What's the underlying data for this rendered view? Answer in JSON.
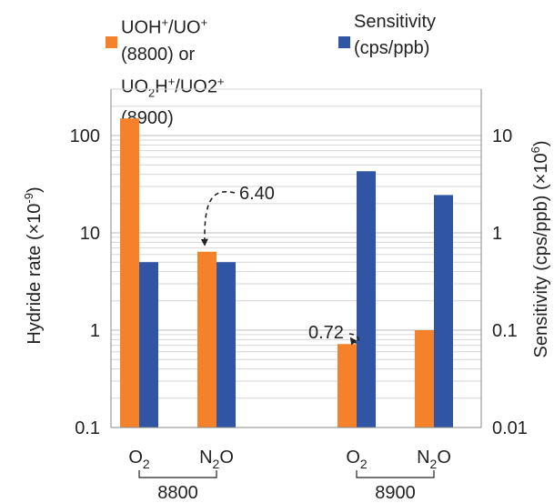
{
  "chart_data": {
    "type": "bar",
    "y_scale": "log",
    "grid": true,
    "legend_position": "top",
    "legend": [
      {
        "key": "hydride",
        "color": "#F5822A",
        "line1_parts": [
          {
            "t": "UOH",
            "s": ""
          },
          {
            "t": "+",
            "s": "sup"
          },
          {
            "t": "/UO",
            "s": ""
          },
          {
            "t": "+",
            "s": "sup"
          },
          {
            "t": " (8800) or",
            "s": ""
          }
        ],
        "line2_parts": [
          {
            "t": "UO",
            "s": ""
          },
          {
            "t": "2",
            "s": "sub"
          },
          {
            "t": "H",
            "s": ""
          },
          {
            "t": "+",
            "s": "sup"
          },
          {
            "t": "/UO2",
            "s": ""
          },
          {
            "t": "+",
            "s": "sup"
          },
          {
            "t": " (8900)",
            "s": ""
          }
        ]
      },
      {
        "key": "sensitivity",
        "color": "#2F55A4",
        "line1_parts": [
          {
            "t": "Sensitivity",
            "s": ""
          }
        ],
        "line2_parts": [
          {
            "t": "(cps/ppb)",
            "s": ""
          }
        ]
      }
    ],
    "y_left": {
      "label": "Hydride rate (×10",
      "label_exp": "-9",
      "label_end": ")",
      "range": [
        0.1,
        300
      ],
      "ticks": [
        0.1,
        1,
        10,
        100
      ],
      "tick_labels": [
        "0.1",
        "1",
        "10",
        "100"
      ]
    },
    "y_right": {
      "label": "Sensitivity (cps/ppb) (×10",
      "label_exp": "6",
      "label_end": ")",
      "range": [
        0.01,
        30
      ],
      "ticks": [
        0.01,
        0.1,
        1,
        10
      ],
      "tick_labels": [
        "0.01",
        "0.1",
        "1",
        "10"
      ]
    },
    "categories": [
      {
        "main": "O",
        "sub": "2",
        "rest": ""
      },
      {
        "main": "N",
        "sub": "2",
        "rest": "O"
      },
      {
        "main": "O",
        "sub": "2",
        "rest": ""
      },
      {
        "main": "N",
        "sub": "2",
        "rest": "O"
      }
    ],
    "groups": [
      {
        "label": "8800",
        "members": [
          0,
          1
        ]
      },
      {
        "label": "8900",
        "members": [
          2,
          3
        ]
      }
    ],
    "series": [
      {
        "key": "hydride",
        "axis": "left",
        "color": "#F5822A",
        "values": [
          150,
          6.4,
          0.72,
          1.0
        ]
      },
      {
        "key": "sensitivity",
        "axis": "right",
        "color": "#2F55A4",
        "values": [
          0.5,
          0.5,
          4.3,
          2.45
        ]
      }
    ],
    "annotations": [
      {
        "text": "6.40",
        "target_category": 1
      },
      {
        "text": "0.72",
        "target_category": 2
      }
    ]
  }
}
